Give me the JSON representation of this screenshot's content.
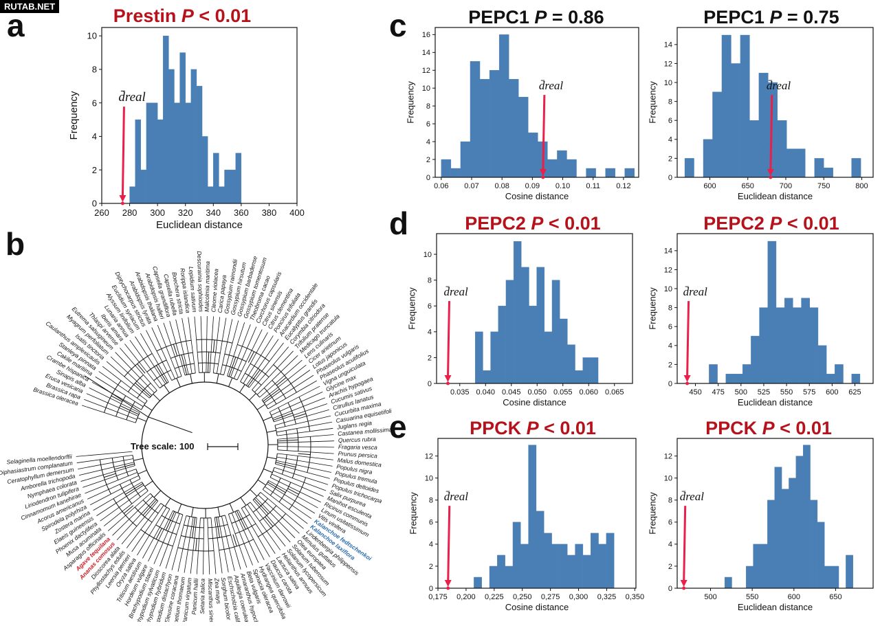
{
  "watermark": "RUTAB.NET",
  "panel_letters": {
    "a": "a",
    "b": "b",
    "c": "c",
    "d": "d",
    "e": "e"
  },
  "colors": {
    "bar": "#4a7fb5",
    "bar_edge": "#3a6a9c",
    "arrow": "#e8204a",
    "sig_title": "#b5121b",
    "ns_title": "#111111",
    "tree_red": "#d0202a",
    "tree_blue": "#2f6fb0"
  },
  "dreal_label": "d̄real",
  "titles": {
    "a": {
      "gene": "Prestin",
      "p": "P",
      "rest": " < 0.01",
      "sig": true
    },
    "c1": {
      "gene": "PEPC1",
      "p": "P",
      "rest": " = 0.86",
      "sig": false
    },
    "c2": {
      "gene": "PEPC1",
      "p": "P",
      "rest": " = 0.75",
      "sig": false
    },
    "d1": {
      "gene": "PEPC2",
      "p": "P",
      "rest": " < 0.01",
      "sig": true
    },
    "d2": {
      "gene": "PEPC2",
      "p": "P",
      "rest": " < 0.01",
      "sig": true
    },
    "e1": {
      "gene": "PPCK",
      "p": "P",
      "rest": " < 0.01",
      "sig": true
    },
    "e2": {
      "gene": "PPCK",
      "p": "P",
      "rest": " < 0.01",
      "sig": true
    }
  },
  "tree": {
    "scale_label": "Tree scale: 100",
    "species": [
      "Brassica oleracea",
      "Brassica rapa",
      "Eruca vesicaria",
      "Sinapis alba",
      "Crambe hispanica",
      "Cakile maritima",
      "Stanleya pinnata",
      "Caulanthus amplexicaulis",
      "Isatis tinctoria",
      "Myagrum perfoliatum",
      "Eutrema salsugineum",
      "Thlaspi arvense",
      "Iberis amara",
      "Lunaria annua",
      "Alyssum linifolium",
      "Euclidium syriacum",
      "Diptychocarpus strictus",
      "Arabidopsis lyrata",
      "Arabidopsis thaliana",
      "Arabidopsis halleri",
      "Capsella grandiflora",
      "Capsella rubella",
      "Boechera stricta",
      "Rorippa islandica",
      "Lepidium sativum",
      "Descurainia sophioides",
      "Malcolmia maritima",
      "Cleome violacea",
      "Carica papaya",
      "Gossypium raimondii",
      "Gossypium hirsutum",
      "Gossypium barbadense",
      "Gossypium tomentosum",
      "Theobroma cacao",
      "Corchorus capsularis",
      "Citrus sinensis",
      "Citrus clementina",
      "Poncirus trifoliata",
      "Anacardium occidentale",
      "Eucalyptus grandis",
      "Corymbia citriodora",
      "Trifolium pratense",
      "Medicago truncatula",
      "Lens culinaris",
      "Cicer arietinum",
      "Lotus japonicus",
      "Phaseolus vulgaris",
      "Phaseolus acutifolius",
      "Vigna unguiculata",
      "Glycine max",
      "Arachis hypogaea",
      "Cucumis sativus",
      "Citrullus lanatus",
      "Cucurbita maxima",
      "Casuarina equisetifolia",
      "Juglans regia",
      "Castanea mollissima",
      "Quercus rubra",
      "Fragaria vesca",
      "Prunus persica",
      "Malus domestica",
      "Populus nigra",
      "Populus tremula",
      "Populus deltoides",
      "Populus trichocarpa",
      "Salix purpurea",
      "Manihot esculenta",
      "Ricinus communis",
      "Linum usitatissimum",
      "Vitis vinifera",
      "Kalanchoe fedtschenkoi",
      "Kalanchoe laxiflora",
      "Lindenbergia philippensis",
      "Mimulus guttatus",
      "Olea europaea",
      "Solanum tuberosum",
      "Solanum lycopersicum",
      "Helianthus annuus",
      "Lactuca sativa",
      "Daucus carota",
      "Vaccinium darrowii",
      "Hydrangea quercifolia",
      "Spinacia oleracea",
      "Beta vulgaris",
      "Amaranthus hypochondriacus",
      "Aquilegia coerulea",
      "Eschscholzia californica",
      "Sorghum bicolor",
      "Zea mays",
      "Miscanthus sinensis",
      "Setaria italica",
      "Panicum hallii",
      "Panicum virgatum",
      "Oropetium thomaeum",
      "Eleusine coracana",
      "Brachypodium distachyon",
      "Brachypodium hybridum",
      "Brachypodium sylvaticum",
      "Brachypodium stacei",
      "Hordeum vulgare",
      "Triticum aestivum",
      "Oryza sativa",
      "Leersia perrieri",
      "Phyllostachys edulis",
      "Dioscorea alata",
      "Ananas comosus",
      "Agave tequilana",
      "Asparagus officinalis",
      "Musa acuminata",
      "Phoenix dactylifera",
      "Elaeis guineensis",
      "Zostera marina",
      "Spirodela polyrhiza",
      "Acorus americanus",
      "Cinnamomum kanehirae",
      "Liriodendron tulipifera",
      "Nymphaea colorata",
      "Amborella trichopoda",
      "Ceratophyllum demersum",
      "Diphasiastrum complanatum",
      "Selaginella moellendorffii"
    ],
    "red_species": [
      "Ananas comosus",
      "Agave tequilana"
    ],
    "blue_species": [
      "Kalanchoe laxiflora",
      "Kalanchoe fedtschenkoi"
    ]
  },
  "chart_data": [
    {
      "id": "a",
      "type": "bar",
      "xlabel": "Euclidean distance",
      "ylabel": "Frequency",
      "xlim": [
        260,
        400
      ],
      "ylim": [
        0,
        10.5
      ],
      "xticks": [
        260,
        280,
        300,
        320,
        340,
        360,
        380,
        400
      ],
      "yticks": [
        0,
        2,
        4,
        6,
        8,
        10
      ],
      "bin_start": 280,
      "bin_width": 4,
      "values": [
        1,
        5,
        2,
        6,
        6,
        5,
        10,
        8,
        6,
        9,
        6,
        8,
        7,
        4,
        1,
        3,
        1,
        2,
        2,
        3
      ],
      "dreal": 275
    },
    {
      "id": "c1",
      "type": "bar",
      "xlabel": "Cosine distance",
      "ylabel": "Frequency",
      "xlim": [
        0.058,
        0.125
      ],
      "ylim": [
        0,
        16.8
      ],
      "xticks": [
        0.06,
        0.07,
        0.08,
        0.09,
        0.1,
        0.11,
        0.12
      ],
      "xtick_labels": [
        "0.06",
        "0.07",
        "0.08",
        "0.09",
        "0.10",
        "0.11",
        "0.12"
      ],
      "yticks": [
        0,
        2,
        4,
        6,
        8,
        10,
        12,
        14,
        16
      ],
      "bin_start": 0.06,
      "bin_width": 0.00318,
      "values": [
        2,
        1,
        4,
        13,
        11,
        12,
        16,
        11,
        9,
        5,
        4,
        2,
        3,
        2,
        0,
        1,
        0,
        1,
        0,
        1
      ],
      "dreal": 0.0935
    },
    {
      "id": "c2",
      "type": "bar",
      "xlabel": "Euclidean distance",
      "ylabel": "Frequency",
      "xlim": [
        557,
        815
      ],
      "ylim": [
        0,
        15.8
      ],
      "xticks": [
        600,
        650,
        700,
        750,
        800
      ],
      "yticks": [
        0,
        2,
        4,
        6,
        8,
        10,
        12,
        14
      ],
      "bin_start": 567,
      "bin_width": 12.2,
      "values": [
        2,
        0,
        4,
        9,
        15,
        12,
        15,
        6,
        11,
        10,
        6,
        3,
        3,
        0,
        2,
        1,
        0,
        0,
        2
      ],
      "dreal": 680
    },
    {
      "id": "d1",
      "type": "bar",
      "xlabel": "Cosine distance",
      "ylabel": "Frequency",
      "xlim": [
        0.0305,
        0.0685
      ],
      "ylim": [
        0,
        11.6
      ],
      "xticks": [
        0.035,
        0.04,
        0.045,
        0.05,
        0.055,
        0.06,
        0.065
      ],
      "xtick_labels": [
        "0.035",
        "0.040",
        "0.045",
        "0.050",
        "0.055",
        "0.060",
        "0.065"
      ],
      "yticks": [
        0,
        2,
        4,
        6,
        8,
        10
      ],
      "bin_start": 0.038,
      "bin_width": 0.00149,
      "values": [
        4,
        1,
        4,
        6,
        8,
        11,
        9,
        6,
        9,
        4,
        8,
        5,
        3,
        1,
        2,
        2
      ],
      "dreal": 0.0327
    },
    {
      "id": "d2",
      "type": "bar",
      "xlabel": "Euclidean distance",
      "ylabel": "Frequency",
      "xlim": [
        430,
        645
      ],
      "ylim": [
        0,
        15.8
      ],
      "xticks": [
        450,
        475,
        500,
        525,
        550,
        575,
        600,
        625
      ],
      "yticks": [
        0,
        2,
        4,
        6,
        8,
        10,
        12,
        14
      ],
      "bin_start": 465,
      "bin_width": 9.2,
      "values": [
        2,
        0,
        1,
        1,
        2,
        5,
        8,
        15,
        8,
        9,
        8,
        9,
        8,
        4,
        1,
        2,
        0,
        1
      ],
      "dreal": 441
    },
    {
      "id": "e1",
      "type": "bar",
      "xlabel": "Cosine distance",
      "ylabel": "Frequency",
      "xlim": [
        0.175,
        0.351
      ],
      "ylim": [
        0,
        13.6
      ],
      "xticks": [
        0.175,
        0.2,
        0.225,
        0.25,
        0.275,
        0.3,
        0.325,
        0.35
      ],
      "xtick_labels": [
        "0,175",
        "0,200",
        "0,225",
        "0,250",
        "0,275",
        "0,300",
        "0,325",
        "0,350"
      ],
      "yticks": [
        0,
        2,
        4,
        6,
        8,
        10,
        12
      ],
      "bin_start": 0.207,
      "bin_width": 0.00692,
      "values": [
        1,
        0,
        2,
        3,
        2,
        6,
        4,
        13,
        7,
        5,
        4,
        4,
        3,
        4,
        3,
        5,
        4,
        5
      ],
      "dreal": 0.184
    },
    {
      "id": "e2",
      "type": "bar",
      "xlabel": "Euclidean distance",
      "ylabel": "Frequency",
      "xlim": [
        460,
        695
      ],
      "ylim": [
        0,
        13.6
      ],
      "xticks": [
        500,
        550,
        600,
        650
      ],
      "yticks": [
        0,
        2,
        4,
        6,
        8,
        10,
        12
      ],
      "bin_start": 517,
      "bin_width": 8.55,
      "values": [
        1,
        0,
        0,
        2,
        4,
        4,
        8,
        11,
        9,
        10,
        12,
        13,
        8,
        6,
        2,
        2,
        0,
        3
      ],
      "dreal": 468
    }
  ]
}
